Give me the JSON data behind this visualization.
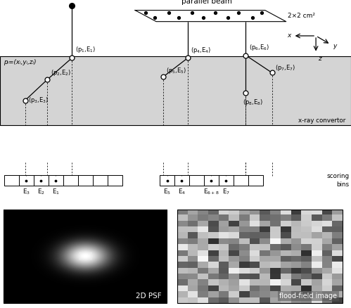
{
  "bg_color": "#ffffff",
  "convertor_bg": "#d4d4d4",
  "title_parallel_beam": "parallel beam",
  "label_beam_size": "2×2 cm²",
  "label_xray_convertor": "x-ray convertor",
  "label_scoring_bins": "scoring\nbins",
  "label_pi": "pᵢ=(xᵢ,yᵢ,zᵢ)",
  "label_2dpsf": "2D PSF",
  "label_flood": "flood-field image",
  "fig_width": 4.99,
  "fig_height": 4.38,
  "dpi": 100
}
